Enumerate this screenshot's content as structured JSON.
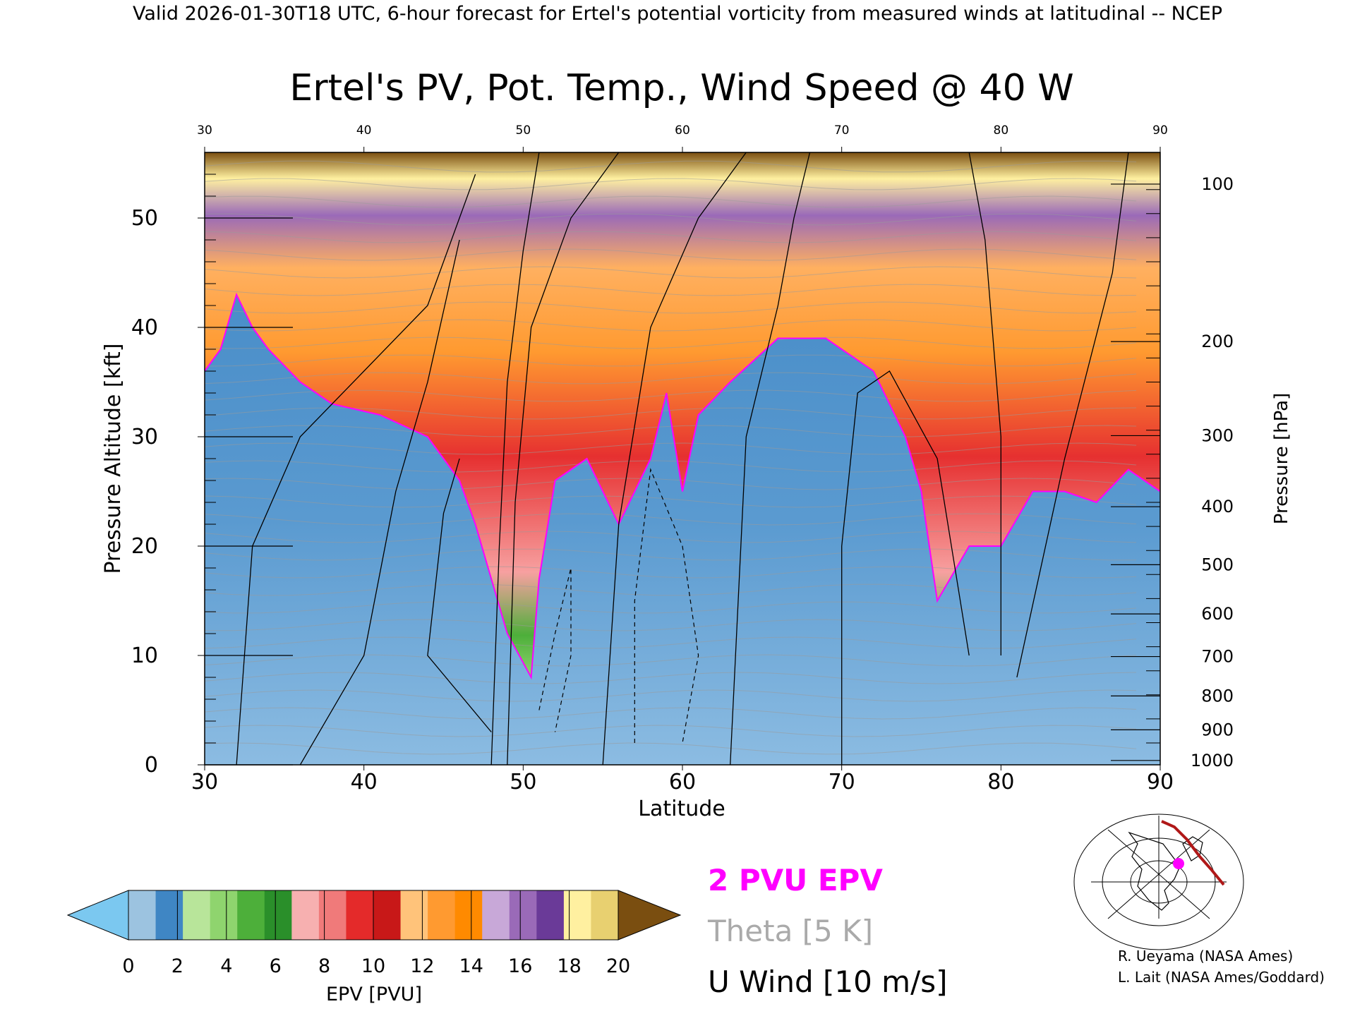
{
  "header": "Valid 2026-01-30T18 UTC, 6-hour forecast for Ertel's potential vorticity from measured winds at latitudinal -- NCEP",
  "chart_data": {
    "type": "heatmap",
    "title": "Ertel's PV, Pot. Temp., Wind Speed @ 40 W",
    "xlabel": "Latitude",
    "ylabel": "Pressure Altitude [kft]",
    "ylabel_right": "Pressure [hPa]",
    "x_ticks": [
      30,
      40,
      50,
      60,
      70,
      80,
      90
    ],
    "y_ticks": [
      0,
      10,
      20,
      30,
      40,
      50
    ],
    "pressure_ticks": [
      "100",
      "200",
      "300",
      "400",
      "500",
      "600",
      "700",
      "800",
      "900",
      "1000"
    ],
    "pressure_tick_kft": [
      53.1,
      38.7,
      30.1,
      23.6,
      18.3,
      13.8,
      9.9,
      6.3,
      3.2,
      0.4
    ],
    "xlim": [
      30,
      90
    ],
    "ylim": [
      0,
      56
    ],
    "colorbar": {
      "label": "EPV [PVU]",
      "ticks": [
        "0",
        "2",
        "4",
        "6",
        "8",
        "10",
        "12",
        "14",
        "16",
        "18",
        "20"
      ],
      "colors": [
        "#7bc8f0",
        "#9cc3e0",
        "#3f86c4",
        "#b8e59a",
        "#8fd46e",
        "#4daf3a",
        "#2a8f2a",
        "#f7b0b0",
        "#f07a7a",
        "#e42a2a",
        "#c81818",
        "#ffc37a",
        "#ff9a30",
        "#ff8a00",
        "#c8a8d8",
        "#9a6ab8",
        "#6a3a98",
        "#fff0a0",
        "#e8d070",
        "#7a4e10"
      ]
    },
    "tropopause_pvu": [
      [
        30,
        36
      ],
      [
        31,
        38
      ],
      [
        32,
        43
      ],
      [
        33,
        40
      ],
      [
        34,
        38
      ],
      [
        36,
        35
      ],
      [
        38,
        33
      ],
      [
        41,
        32
      ],
      [
        44,
        30
      ],
      [
        46,
        26
      ],
      [
        47,
        22
      ],
      [
        48,
        17
      ],
      [
        49,
        12
      ],
      [
        50.5,
        8
      ],
      [
        51,
        17
      ],
      [
        52,
        26
      ],
      [
        54,
        28
      ],
      [
        56,
        22
      ],
      [
        58,
        28
      ],
      [
        59,
        34
      ],
      [
        60,
        25
      ],
      [
        61,
        32
      ],
      [
        63,
        35
      ],
      [
        66,
        39
      ],
      [
        69,
        39
      ],
      [
        72,
        36
      ],
      [
        74,
        30
      ],
      [
        75,
        25
      ],
      [
        76,
        15
      ],
      [
        78,
        20
      ],
      [
        80,
        20
      ],
      [
        82,
        25
      ],
      [
        84,
        25
      ],
      [
        86,
        24
      ],
      [
        88,
        27
      ],
      [
        90,
        25
      ]
    ],
    "legend": [
      {
        "label": "2 PVU EPV",
        "color": "#ff00ff"
      },
      {
        "label": "Theta [5 K]",
        "color": "#aaaaaa"
      },
      {
        "label": "U Wind [10 m/s]",
        "color": "#000000"
      }
    ],
    "credits": [
      "R. Ueyama (NASA Ames)",
      "L. Lait (NASA Ames/Goddard)"
    ]
  }
}
